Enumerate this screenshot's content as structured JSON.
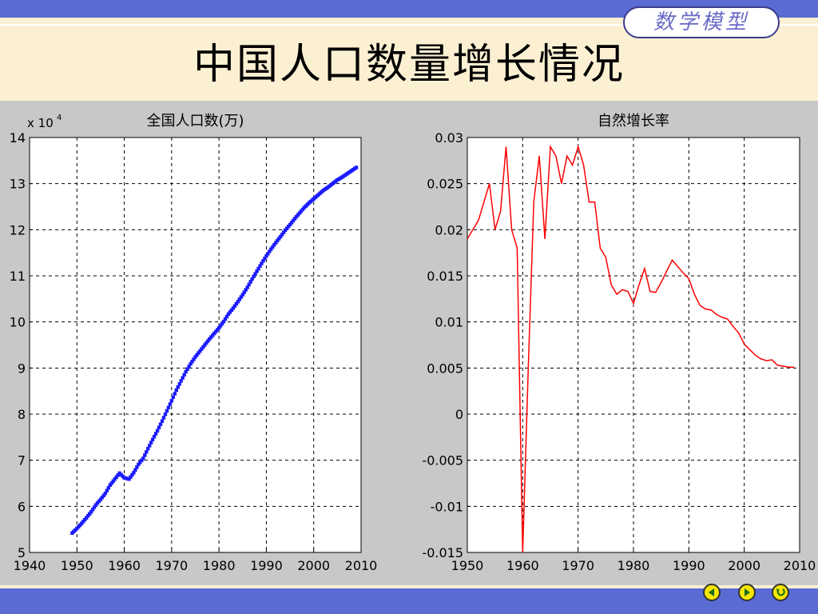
{
  "header": {
    "badge": "数学模型",
    "title": "中国人口数量增长情况"
  },
  "nav": {
    "icons": [
      "previous-icon",
      "next-icon",
      "return-icon"
    ]
  },
  "colors": {
    "top_bar": "#5a6bd4",
    "title_band": "#fbf0d2",
    "population_series": "#1a1aff",
    "growth_series": "#ff0000",
    "nav_button": "#f5e600"
  },
  "chart_data": [
    {
      "type": "scatter",
      "title": "全国人口数(万)",
      "y_exponent_label": "x 10",
      "y_exponent_sup": "4",
      "xlim": [
        1940,
        2010
      ],
      "ylim": [
        5,
        14
      ],
      "x_ticks": [
        1940,
        1950,
        1960,
        1970,
        1980,
        1990,
        2000,
        2010
      ],
      "y_ticks": [
        5,
        6,
        7,
        8,
        9,
        10,
        11,
        12,
        13,
        14
      ],
      "grid": true,
      "marker_style": "dense blue dots",
      "series": [
        {
          "x": [
            1949,
            1950,
            1951,
            1952,
            1953,
            1954,
            1955,
            1956,
            1957,
            1958,
            1959,
            1960,
            1961,
            1962,
            1963,
            1964,
            1965,
            1966,
            1967,
            1968,
            1969,
            1970,
            1971,
            1972,
            1973,
            1974,
            1975,
            1976,
            1977,
            1978,
            1979,
            1980,
            1981,
            1982,
            1983,
            1984,
            1985,
            1986,
            1987,
            1988,
            1989,
            1990,
            1991,
            1992,
            1993,
            1994,
            1995,
            1996,
            1997,
            1998,
            1999,
            2000,
            2001,
            2002,
            2003,
            2004,
            2005,
            2006,
            2007,
            2008,
            2009
          ],
          "y": [
            5.42,
            5.52,
            5.63,
            5.75,
            5.88,
            6.03,
            6.15,
            6.28,
            6.46,
            6.59,
            6.72,
            6.62,
            6.59,
            6.73,
            6.91,
            7.04,
            7.25,
            7.45,
            7.64,
            7.85,
            8.07,
            8.29,
            8.52,
            8.72,
            8.92,
            9.09,
            9.24,
            9.37,
            9.5,
            9.63,
            9.75,
            9.87,
            10.01,
            10.17,
            10.3,
            10.44,
            10.59,
            10.75,
            10.93,
            11.1,
            11.27,
            11.43,
            11.58,
            11.72,
            11.85,
            11.99,
            12.11,
            12.24,
            12.36,
            12.48,
            12.58,
            12.67,
            12.76,
            12.85,
            12.92,
            13.0,
            13.08,
            13.14,
            13.21,
            13.28,
            13.35
          ]
        }
      ]
    },
    {
      "type": "line",
      "title": "自然增长率",
      "xlim": [
        1950,
        2010
      ],
      "ylim": [
        -0.015,
        0.03
      ],
      "x_ticks": [
        1950,
        1960,
        1970,
        1980,
        1990,
        2000,
        2010
      ],
      "y_ticks": [
        -0.015,
        -0.01,
        -0.005,
        0,
        0.005,
        0.01,
        0.015,
        0.02,
        0.025,
        0.03
      ],
      "y_tick_labels": [
        "-0.015",
        "-0.01",
        "-0.005",
        "0",
        "0.005",
        "0.01",
        "0.015",
        "0.02",
        "0.025",
        "0.03"
      ],
      "grid": true,
      "series": [
        {
          "x": [
            1950,
            1951,
            1952,
            1953,
            1954,
            1955,
            1956,
            1957,
            1958,
            1959,
            1960,
            1961,
            1962,
            1963,
            1964,
            1965,
            1966,
            1967,
            1968,
            1969,
            1970,
            1971,
            1972,
            1973,
            1974,
            1975,
            1976,
            1977,
            1978,
            1979,
            1980,
            1981,
            1982,
            1983,
            1984,
            1985,
            1986,
            1987,
            1988,
            1989,
            1990,
            1991,
            1992,
            1993,
            1994,
            1995,
            1996,
            1997,
            1998,
            1999,
            2000,
            2001,
            2002,
            2003,
            2004,
            2005,
            2006,
            2007,
            2008,
            2009
          ],
          "y": [
            0.019,
            0.02,
            0.021,
            0.023,
            0.025,
            0.02,
            0.022,
            0.029,
            0.02,
            0.018,
            -0.015,
            0.005,
            0.023,
            0.028,
            0.019,
            0.029,
            0.028,
            0.025,
            0.028,
            0.027,
            0.029,
            0.027,
            0.023,
            0.023,
            0.018,
            0.017,
            0.014,
            0.013,
            0.0135,
            0.0133,
            0.012,
            0.014,
            0.0158,
            0.0133,
            0.0132,
            0.0143,
            0.0155,
            0.0167,
            0.016,
            0.0153,
            0.0147,
            0.013,
            0.0118,
            0.0114,
            0.0113,
            0.0108,
            0.0105,
            0.0103,
            0.0095,
            0.0088,
            0.0076,
            0.007,
            0.0064,
            0.006,
            0.0058,
            0.0059,
            0.0053,
            0.0052,
            0.0051,
            0.0051
          ]
        }
      ]
    }
  ]
}
